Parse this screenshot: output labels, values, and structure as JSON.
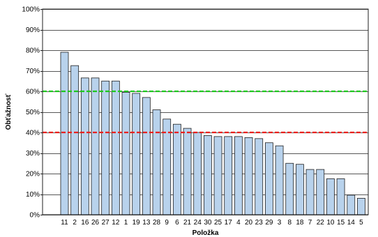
{
  "chart_data": {
    "type": "bar",
    "title": "",
    "xlabel": "Položka",
    "ylabel": "Obťažnosť",
    "categories": [
      "11",
      "2",
      "16",
      "26",
      "27",
      "12",
      "1",
      "19",
      "13",
      "28",
      "9",
      "6",
      "21",
      "24",
      "30",
      "25",
      "17",
      "4",
      "20",
      "23",
      "29",
      "3",
      "8",
      "18",
      "7",
      "22",
      "10",
      "15",
      "14",
      "5"
    ],
    "values": [
      79,
      72.5,
      66.5,
      66.5,
      65,
      65,
      59.5,
      59,
      57,
      51,
      46.5,
      44,
      42,
      40,
      38.5,
      38,
      38,
      38,
      37.5,
      37,
      35,
      33.5,
      25,
      24.5,
      22,
      22,
      17.5,
      17.5,
      9.5,
      8
    ],
    "ylim": [
      0,
      100
    ],
    "y_ticks": [
      "0%",
      "10%",
      "20%",
      "30%",
      "40%",
      "50%",
      "60%",
      "70%",
      "80%",
      "90%",
      "100%"
    ],
    "y_tick_values": [
      0,
      10,
      20,
      30,
      40,
      50,
      60,
      70,
      80,
      90,
      100
    ],
    "grid": true,
    "reference_lines": [
      {
        "value": 60,
        "color": "#1ec81e",
        "style": "dashed"
      },
      {
        "value": 40,
        "color": "#e8201c",
        "style": "dashed"
      }
    ],
    "colors": {
      "bar_fill": "#b8d2ec",
      "bar_stroke": "#1f1f1f",
      "grid": "#1f1f1f",
      "frame": "#1f1f1f"
    }
  }
}
